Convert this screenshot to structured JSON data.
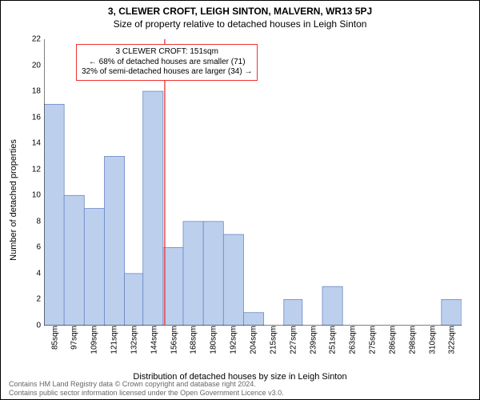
{
  "title_super": "3, CLEWER CROFT, LEIGH SINTON, MALVERN, WR13 5PJ",
  "title_sub": "Size of property relative to detached houses in Leigh Sinton",
  "ylabel": "Number of detached properties",
  "xlabel": "Distribution of detached houses by size in Leigh Sinton",
  "footer_line1": "Contains HM Land Registry data © Crown copyright and database right 2024.",
  "footer_line2": "Contains public sector information licensed under the Open Government Licence v3.0.",
  "annotation": {
    "line1": "3 CLEWER CROFT: 151sqm",
    "line2": "← 68% of detached houses are smaller (71)",
    "line3": "32% of semi-detached houses are larger (34) →"
  },
  "chart": {
    "type": "histogram",
    "background_color": "#ffffff",
    "bar_fill": "#bcd0ee",
    "bar_stroke": "#6b88c4",
    "axis_color": "#000000",
    "tick_color": "#000000",
    "marker_line_color": "#ee3333",
    "annotation_border": "#ee3333",
    "footer_color": "#666666",
    "font_family": "Arial",
    "title_fontsize": 12,
    "label_fontsize": 11,
    "tick_fontsize": 10,
    "annotation_fontsize": 10,
    "footer_fontsize": 9,
    "x_tick_start": 85,
    "x_tick_step": 11.85,
    "x_tick_count": 21,
    "x_tick_unit": "sqm",
    "xlim": [
      79,
      328
    ],
    "ylim": [
      0,
      22
    ],
    "y_ticks": [
      0,
      2,
      4,
      6,
      8,
      10,
      12,
      14,
      16,
      18,
      20,
      22
    ],
    "marker_x": 151,
    "bars": [
      {
        "x0": 79,
        "x1": 91,
        "y": 17
      },
      {
        "x0": 91,
        "x1": 103,
        "y": 10
      },
      {
        "x0": 103,
        "x1": 115,
        "y": 9
      },
      {
        "x0": 115,
        "x1": 127,
        "y": 13
      },
      {
        "x0": 127,
        "x1": 138,
        "y": 4
      },
      {
        "x0": 138,
        "x1": 150,
        "y": 18
      },
      {
        "x0": 150,
        "x1": 162,
        "y": 6
      },
      {
        "x0": 162,
        "x1": 174,
        "y": 8
      },
      {
        "x0": 174,
        "x1": 186,
        "y": 8
      },
      {
        "x0": 186,
        "x1": 198,
        "y": 7
      },
      {
        "x0": 198,
        "x1": 210,
        "y": 1
      },
      {
        "x0": 210,
        "x1": 222,
        "y": 0
      },
      {
        "x0": 222,
        "x1": 233,
        "y": 2
      },
      {
        "x0": 233,
        "x1": 245,
        "y": 0
      },
      {
        "x0": 245,
        "x1": 257,
        "y": 3
      },
      {
        "x0": 257,
        "x1": 269,
        "y": 0
      },
      {
        "x0": 269,
        "x1": 281,
        "y": 0
      },
      {
        "x0": 281,
        "x1": 293,
        "y": 0
      },
      {
        "x0": 293,
        "x1": 304,
        "y": 0
      },
      {
        "x0": 304,
        "x1": 316,
        "y": 0
      },
      {
        "x0": 316,
        "x1": 328,
        "y": 2
      }
    ]
  }
}
